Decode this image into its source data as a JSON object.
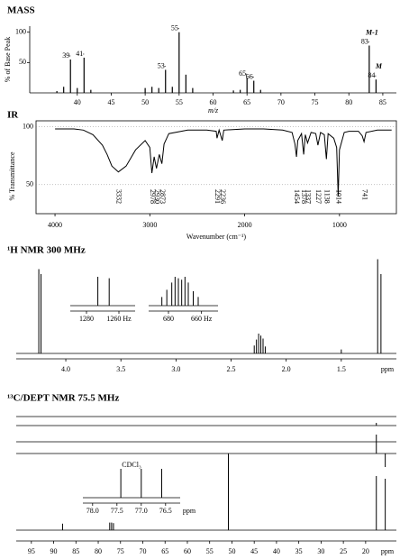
{
  "chart_data": [
    {
      "type": "bar",
      "title": "MASS",
      "y_label": "% of Base Peak",
      "x_label": "m/z",
      "x": [
        37,
        38,
        39,
        40,
        41,
        42,
        50,
        51,
        52,
        53,
        54,
        55,
        56,
        57,
        63,
        64,
        65,
        66,
        67,
        83,
        84
      ],
      "values": [
        3,
        10,
        55,
        8,
        58,
        5,
        8,
        10,
        8,
        38,
        10,
        100,
        30,
        8,
        4,
        5,
        25,
        20,
        5,
        78,
        22
      ],
      "labeled_peaks": [
        39,
        41,
        53,
        55,
        65,
        66,
        83,
        84
      ],
      "annotations": [
        {
          "x": 83,
          "text": "M-1"
        },
        {
          "x": 84,
          "text": "M"
        }
      ],
      "xlim": [
        33,
        87
      ],
      "xticks": [
        40,
        45,
        50,
        55,
        60,
        65,
        70,
        75,
        80,
        85
      ],
      "ylim": [
        0,
        110
      ],
      "yticks": [
        50,
        100
      ],
      "color": "#000000"
    },
    {
      "type": "line",
      "title": "IR",
      "y_label": "% Transmittance",
      "x_label": "Wavenumber (cm⁻¹)",
      "x": [
        4000,
        3800,
        3700,
        3600,
        3500,
        3450,
        3400,
        3332,
        3250,
        3150,
        3050,
        3000,
        2978,
        2955,
        2930,
        2900,
        2873,
        2850,
        2800,
        2600,
        2400,
        2300,
        2291,
        2270,
        2236,
        2220,
        2000,
        1800,
        1600,
        1500,
        1470,
        1454,
        1440,
        1400,
        1378,
        1360,
        1337,
        1300,
        1250,
        1227,
        1200,
        1160,
        1138,
        1120,
        1060,
        1030,
        1014,
        1000,
        950,
        900,
        800,
        760,
        741,
        720,
        600,
        450
      ],
      "values": [
        98,
        98,
        97,
        93,
        84,
        76,
        66,
        61,
        66,
        80,
        88,
        82,
        60,
        74,
        64,
        76,
        68,
        85,
        94,
        97,
        97,
        96,
        90,
        97,
        88,
        97,
        98,
        98,
        97,
        95,
        85,
        74,
        88,
        94,
        76,
        93,
        86,
        95,
        94,
        84,
        95,
        93,
        72,
        94,
        90,
        82,
        40,
        80,
        95,
        96,
        96,
        92,
        87,
        95,
        97,
        97
      ],
      "peak_labels": [
        3332,
        2978,
        2930,
        2873,
        2291,
        2236,
        1454,
        1378,
        1337,
        1227,
        1138,
        1014,
        741
      ],
      "xlim": [
        4200,
        400
      ],
      "xticks": [
        4000,
        3000,
        2000,
        1000
      ],
      "ylim": [
        25,
        105
      ],
      "yticks": [
        50,
        100
      ],
      "color": "#000000"
    },
    {
      "type": "stick",
      "title": "¹H NMR 300 MHz",
      "x": [
        4.245,
        4.225,
        2.29,
        2.27,
        2.25,
        2.23,
        2.21,
        2.19,
        1.5,
        1.17,
        1.14
      ],
      "values": [
        85,
        80,
        8,
        14,
        20,
        18,
        15,
        7,
        4,
        95,
        80
      ],
      "xlim": [
        4.45,
        1.0
      ],
      "xticks": [
        {
          "value": 4,
          "label": "4.0"
        },
        3.5,
        {
          "value": 3,
          "label": "3.0"
        },
        2.5,
        {
          "value": 2,
          "label": "2.0"
        },
        1.5
      ],
      "x_unit": "ppm",
      "ylim": [
        0,
        100
      ],
      "insets": [
        {
          "x": [
            1273,
            1266
          ],
          "values": [
            100,
            95
          ],
          "xlim": [
            1290,
            1250
          ],
          "xticks": [
            1280,
            {
              "value": 1260,
              "label": "1260 Hz"
            }
          ]
        },
        {
          "x": [
            684,
            681,
            678,
            676,
            674,
            672,
            670,
            668,
            665,
            662
          ],
          "values": [
            30,
            55,
            80,
            100,
            95,
            90,
            100,
            80,
            50,
            30
          ],
          "xlim": [
            692,
            650
          ],
          "xticks": [
            680,
            {
              "value": 660,
              "label": "660 Hz"
            }
          ]
        }
      ]
    },
    {
      "type": "stick",
      "title": "¹³C/DEPT NMR 75.5 MHz",
      "traces": [
        {
          "x": [
            17.6
          ],
          "values": [
            5
          ]
        },
        {
          "x": [
            50.8,
            17.6,
            15.6
          ],
          "values": [
            -70,
            35,
            -25
          ]
        },
        {
          "x": [
            88.0,
            77.42,
            77.0,
            76.58,
            50.8,
            17.6,
            15.6
          ],
          "values": [
            12,
            14,
            14,
            13,
            88,
            100,
            95
          ]
        }
      ],
      "xlim": [
        98.4,
        13.1
      ],
      "xticks": [
        95,
        90,
        85,
        80,
        75,
        70,
        65,
        60,
        55,
        50,
        45,
        40,
        35,
        30,
        25,
        20
      ],
      "x_unit": "ppm",
      "ylim": [
        0,
        100
      ],
      "insets": [
        {
          "label": "CDCl₃",
          "x": [
            77.42,
            77.0,
            76.58
          ],
          "values": [
            100,
            100,
            100
          ],
          "xlim": [
            78.2,
            76.2
          ],
          "xticks": [
            {
              "value": 78,
              "label": "78.0"
            },
            77.5,
            {
              "value": 77,
              "label": "77.0"
            },
            76.5
          ],
          "x_unit": "ppm"
        }
      ]
    }
  ]
}
